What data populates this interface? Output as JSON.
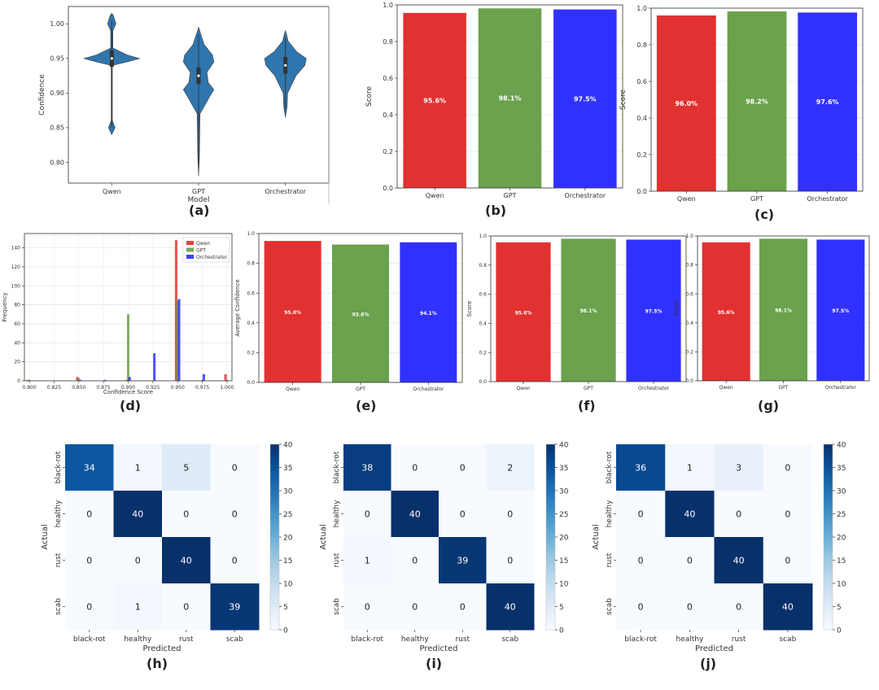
{
  "panel_labels": {
    "a": "(a)",
    "b": "(b)",
    "c": "(c)",
    "d": "(d)",
    "e": "(e)",
    "f": "(f)",
    "g": "(g)",
    "h": "(h)",
    "i": "(i)",
    "j": "(j)"
  },
  "chart_data": [
    {
      "id": "a",
      "type": "violin",
      "categories": [
        "Qwen",
        "GPT",
        "Orchestrator"
      ],
      "xlabel": "Model",
      "ylabel": "Confidence",
      "ylim": [
        0.77,
        1.025
      ],
      "yticks": [
        0.8,
        0.85,
        0.9,
        0.95,
        1.0
      ],
      "violins": [
        {
          "name": "Qwen",
          "profile": [
            [
              0.84,
              0.0
            ],
            [
              0.85,
              0.12
            ],
            [
              0.86,
              0.02
            ],
            [
              0.94,
              0.02
            ],
            [
              0.945,
              0.55
            ],
            [
              0.95,
              1.0
            ],
            [
              0.955,
              0.55
            ],
            [
              0.965,
              0.04
            ],
            [
              0.99,
              0.04
            ],
            [
              1.0,
              0.15
            ],
            [
              1.012,
              0.06
            ],
            [
              1.015,
              0.0
            ]
          ]
        },
        {
          "name": "GPT",
          "profile": [
            [
              0.78,
              0.0
            ],
            [
              0.81,
              0.03
            ],
            [
              0.87,
              0.05
            ],
            [
              0.895,
              0.4
            ],
            [
              0.905,
              0.55
            ],
            [
              0.915,
              0.35
            ],
            [
              0.93,
              0.3
            ],
            [
              0.945,
              0.55
            ],
            [
              0.955,
              0.5
            ],
            [
              0.97,
              0.2
            ],
            [
              0.985,
              0.08
            ],
            [
              0.995,
              0.0
            ]
          ]
        },
        {
          "name": "Orchestrator",
          "profile": [
            [
              0.865,
              0.0
            ],
            [
              0.88,
              0.06
            ],
            [
              0.9,
              0.08
            ],
            [
              0.925,
              0.38
            ],
            [
              0.94,
              0.7
            ],
            [
              0.95,
              0.75
            ],
            [
              0.96,
              0.4
            ],
            [
              0.975,
              0.1
            ],
            [
              0.985,
              0.04
            ],
            [
              0.99,
              0.0
            ]
          ]
        }
      ],
      "medians": [
        0.95,
        0.925,
        0.94
      ]
    },
    {
      "id": "b",
      "type": "bar",
      "categories": [
        "Qwen",
        "GPT",
        "Orchestrator"
      ],
      "values": [
        0.956,
        0.981,
        0.975
      ],
      "data_labels": [
        "95.6%",
        "98.1%",
        "97.5%"
      ],
      "ylabel": "Score",
      "ylim": [
        0,
        1.0
      ],
      "yticks": [
        0.0,
        0.2,
        0.4,
        0.6,
        0.8,
        1.0
      ],
      "colors": [
        "#e02020",
        "#5d9a3e",
        "#1f1fff"
      ]
    },
    {
      "id": "c",
      "type": "bar",
      "categories": [
        "Qwen",
        "GPT",
        "Orchestrator"
      ],
      "values": [
        0.96,
        0.982,
        0.976
      ],
      "data_labels": [
        "96.0%",
        "98.2%",
        "97.6%"
      ],
      "ylabel": "Score",
      "ylim": [
        0,
        1.0
      ],
      "yticks": [
        0.0,
        0.2,
        0.4,
        0.6,
        0.8,
        1.0
      ],
      "colors": [
        "#e02020",
        "#5d9a3e",
        "#1f1fff"
      ]
    },
    {
      "id": "d",
      "type": "histogram",
      "xlabel": "Confidence Score",
      "ylabel": "Frequency",
      "xlim": [
        0.795,
        1.005
      ],
      "ylim": [
        0,
        155
      ],
      "xticks": [
        0.8,
        0.825,
        0.85,
        0.875,
        0.9,
        0.925,
        0.95,
        0.975,
        1.0
      ],
      "xtick_labels": [
        "0.800",
        "0.825",
        "0.850",
        "0.875",
        "0.900",
        "0.925",
        "0.950",
        "0.975",
        "1.000"
      ],
      "yticks": [
        0,
        20,
        40,
        60,
        80,
        100,
        120,
        140
      ],
      "bin_width": 0.0045,
      "legend": [
        "Qwen",
        "GPT",
        "Orchestrator"
      ],
      "series": [
        {
          "name": "Qwen",
          "color": "#e02020",
          "bins": [
            [
              0.8,
              1
            ],
            [
              0.85,
              4
            ],
            [
              0.9,
              1
            ],
            [
              0.95,
              148
            ],
            [
              1.0,
              7
            ]
          ]
        },
        {
          "name": "GPT",
          "color": "#5d9a3e",
          "bins": [
            [
              0.8,
              1
            ],
            [
              0.85,
              3
            ],
            [
              0.9,
              70
            ],
            [
              0.95,
              84
            ],
            [
              0.975,
              1
            ],
            [
              1.0,
              1
            ]
          ]
        },
        {
          "name": "Orchestrator",
          "color": "#1f1fff",
          "bins": [
            [
              0.85,
              1
            ],
            [
              0.875,
              1
            ],
            [
              0.9,
              4
            ],
            [
              0.925,
              29
            ],
            [
              0.95,
              86
            ],
            [
              0.975,
              7
            ]
          ]
        }
      ]
    },
    {
      "id": "e",
      "type": "bar",
      "categories": [
        "Qwen",
        "GPT",
        "Orchestrator"
      ],
      "values": [
        0.95,
        0.926,
        0.941
      ],
      "data_labels": [
        "95.0%",
        "92.6%",
        "94.1%"
      ],
      "ylabel": "Average Confidence",
      "ylim": [
        0,
        1.0
      ],
      "yticks": [
        0.0,
        0.2,
        0.4,
        0.6,
        0.8,
        1.0
      ],
      "colors": [
        "#e02020",
        "#5d9a3e",
        "#1f1fff"
      ]
    },
    {
      "id": "f",
      "type": "bar",
      "categories": [
        "Qwen",
        "GPT",
        "Orchestrator"
      ],
      "values": [
        0.956,
        0.981,
        0.975
      ],
      "data_labels": [
        "95.6%",
        "98.1%",
        "97.5%"
      ],
      "ylabel": "Score",
      "ylim": [
        0,
        1.0
      ],
      "yticks": [
        0.0,
        0.2,
        0.4,
        0.6,
        0.8,
        1.0
      ],
      "colors": [
        "#e02020",
        "#5d9a3e",
        "#1f1fff"
      ]
    },
    {
      "id": "g",
      "type": "bar",
      "categories": [
        "Qwen",
        "GPT",
        "Orchestrator"
      ],
      "values": [
        0.956,
        0.981,
        0.975
      ],
      "data_labels": [
        "95.6%",
        "98.1%",
        "97.5%"
      ],
      "ylabel": "Score",
      "ylim": [
        0,
        1.0
      ],
      "yticks": [
        0.0,
        0.2,
        0.4,
        0.6,
        0.8,
        1.0
      ],
      "colors": [
        "#e02020",
        "#5d9a3e",
        "#1f1fff"
      ]
    },
    {
      "id": "h",
      "type": "heatmap",
      "rows": [
        "black-rot",
        "healthy",
        "rust",
        "scab"
      ],
      "cols": [
        "black-rot",
        "healthy",
        "rust",
        "scab"
      ],
      "values": [
        [
          34,
          1,
          5,
          0
        ],
        [
          0,
          40,
          0,
          0
        ],
        [
          0,
          0,
          40,
          0
        ],
        [
          0,
          1,
          0,
          39
        ]
      ],
      "xlabel": "Predicted",
      "ylabel": "Actual",
      "colorbar": {
        "min": 0,
        "max": 40,
        "ticks": [
          0,
          5,
          10,
          15,
          20,
          25,
          30,
          35,
          40
        ]
      }
    },
    {
      "id": "i",
      "type": "heatmap",
      "rows": [
        "black-rot",
        "healthy",
        "rust",
        "scab"
      ],
      "cols": [
        "black-rot",
        "healthy",
        "rust",
        "scab"
      ],
      "values": [
        [
          38,
          0,
          0,
          2
        ],
        [
          0,
          40,
          0,
          0
        ],
        [
          1,
          0,
          39,
          0
        ],
        [
          0,
          0,
          0,
          40
        ]
      ],
      "xlabel": "Predicted",
      "ylabel": "Actual",
      "colorbar": {
        "min": 0,
        "max": 40,
        "ticks": [
          0,
          5,
          10,
          15,
          20,
          25,
          30,
          35,
          40
        ]
      }
    },
    {
      "id": "j",
      "type": "heatmap",
      "rows": [
        "black-rot",
        "healthy",
        "rust",
        "scab"
      ],
      "cols": [
        "black-rot",
        "healthy",
        "rust",
        "scab"
      ],
      "values": [
        [
          36,
          1,
          3,
          0
        ],
        [
          0,
          40,
          0,
          0
        ],
        [
          0,
          0,
          40,
          0
        ],
        [
          0,
          0,
          0,
          40
        ]
      ],
      "xlabel": "Predicted",
      "ylabel": "Actual",
      "colorbar": {
        "min": 0,
        "max": 40,
        "ticks": [
          0,
          5,
          10,
          15,
          20,
          25,
          30,
          35,
          40
        ]
      }
    }
  ]
}
